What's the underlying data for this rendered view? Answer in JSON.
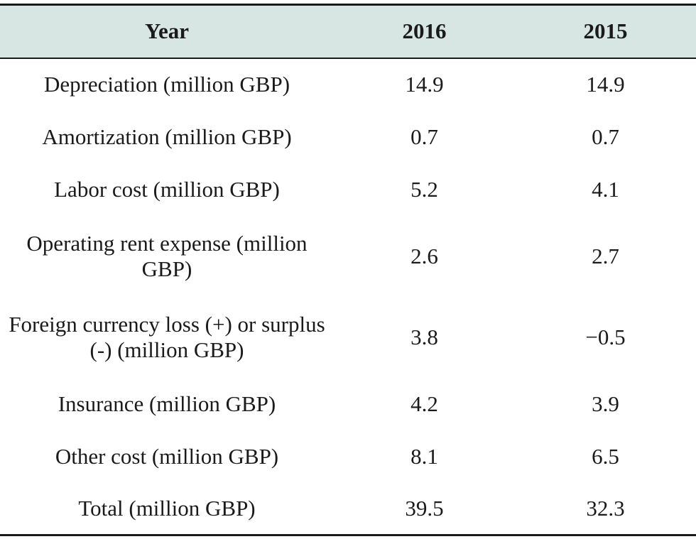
{
  "table": {
    "headers": [
      "Year",
      "2016",
      "2015"
    ],
    "rows": [
      {
        "label": "Depreciation (million GBP)",
        "v2016": "14.9",
        "v2015": "14.9"
      },
      {
        "label": "Amortization (million GBP)",
        "v2016": "0.7",
        "v2015": "0.7"
      },
      {
        "label": "Labor cost (million GBP)",
        "v2016": "5.2",
        "v2015": "4.1"
      },
      {
        "label": "Operating rent expense (million GBP)",
        "v2016": "2.6",
        "v2015": "2.7"
      },
      {
        "label": "Foreign currency loss (+) or surplus (-) (million GBP)",
        "v2016": "3.8",
        "v2015": "−0.5"
      },
      {
        "label": "Insurance (million GBP)",
        "v2016": "4.2",
        "v2015": "3.9"
      },
      {
        "label": "Other cost (million GBP)",
        "v2016": "8.1",
        "v2015": "6.5"
      },
      {
        "label": "Total (million GBP)",
        "v2016": "39.5",
        "v2015": "32.3"
      }
    ]
  },
  "colors": {
    "header_background": "#d8e6e3",
    "rule": "#1a1a1a"
  }
}
